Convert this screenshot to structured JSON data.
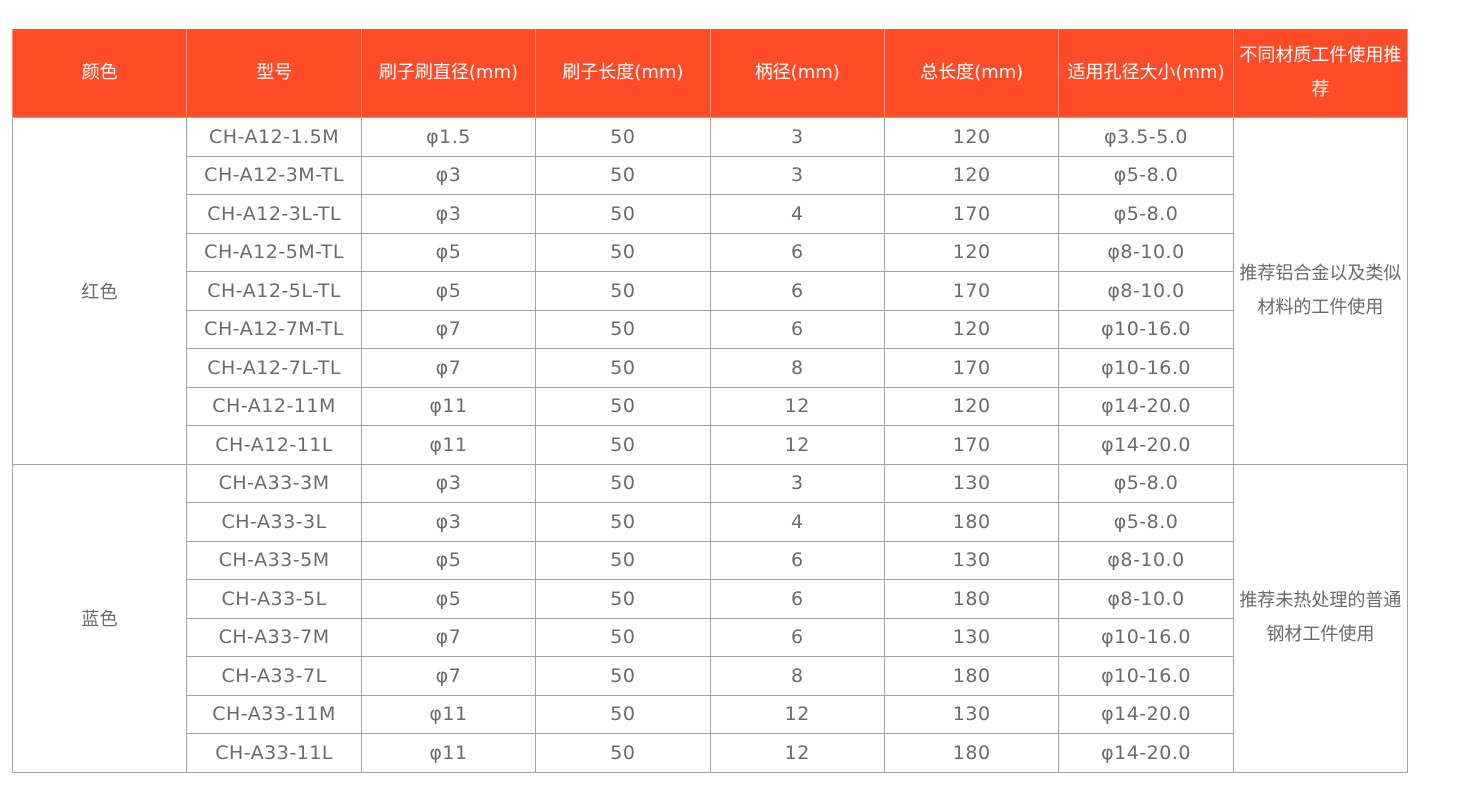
{
  "headers": [
    "颜色",
    "型号",
    "刷子刷直径(mm)",
    "刷子长度(mm)",
    "柄径(mm)",
    "总长度(mm)",
    "适用孔径大小(mm)",
    "不同材质工件使用推荐"
  ],
  "colors": {
    "header_bg": "#FF4B28",
    "text": "#6b6b6b",
    "border": "#a3a3a3"
  },
  "groups": [
    {
      "color": "红色",
      "recommendation": "推荐铝合金以及类似材料的工件使用",
      "rows": [
        [
          "CH-A12-1.5M",
          "φ1.5",
          "50",
          "3",
          "120",
          "φ3.5-5.0"
        ],
        [
          "CH-A12-3M-TL",
          "φ3",
          "50",
          "3",
          "120",
          "φ5-8.0"
        ],
        [
          "CH-A12-3L-TL",
          "φ3",
          "50",
          "4",
          "170",
          "φ5-8.0"
        ],
        [
          "CH-A12-5M-TL",
          "φ5",
          "50",
          "6",
          "120",
          "φ8-10.0"
        ],
        [
          "CH-A12-5L-TL",
          "φ5",
          "50",
          "6",
          "170",
          "φ8-10.0"
        ],
        [
          "CH-A12-7M-TL",
          "φ7",
          "50",
          "6",
          "120",
          "φ10-16.0"
        ],
        [
          "CH-A12-7L-TL",
          "φ7",
          "50",
          "8",
          "170",
          "φ10-16.0"
        ],
        [
          "CH-A12-11M",
          "φ11",
          "50",
          "12",
          "120",
          "φ14-20.0"
        ],
        [
          "CH-A12-11L",
          "φ11",
          "50",
          "12",
          "170",
          "φ14-20.0"
        ]
      ]
    },
    {
      "color": "蓝色",
      "recommendation": "推荐未热处理的普通钢材工件使用",
      "rows": [
        [
          "CH-A33-3M",
          "φ3",
          "50",
          "3",
          "130",
          "φ5-8.0"
        ],
        [
          "CH-A33-3L",
          "φ3",
          "50",
          "4",
          "180",
          "φ5-8.0"
        ],
        [
          "CH-A33-5M",
          "φ5",
          "50",
          "6",
          "130",
          "φ8-10.0"
        ],
        [
          "CH-A33-5L",
          "φ5",
          "50",
          "6",
          "180",
          "φ8-10.0"
        ],
        [
          "CH-A33-7M",
          "φ7",
          "50",
          "6",
          "130",
          "φ10-16.0"
        ],
        [
          "CH-A33-7L",
          "φ7",
          "50",
          "8",
          "180",
          "φ10-16.0"
        ],
        [
          "CH-A33-11M",
          "φ11",
          "50",
          "12",
          "130",
          "φ14-20.0"
        ],
        [
          "CH-A33-11L",
          "φ11",
          "50",
          "12",
          "180",
          "φ14-20.0"
        ]
      ]
    }
  ]
}
